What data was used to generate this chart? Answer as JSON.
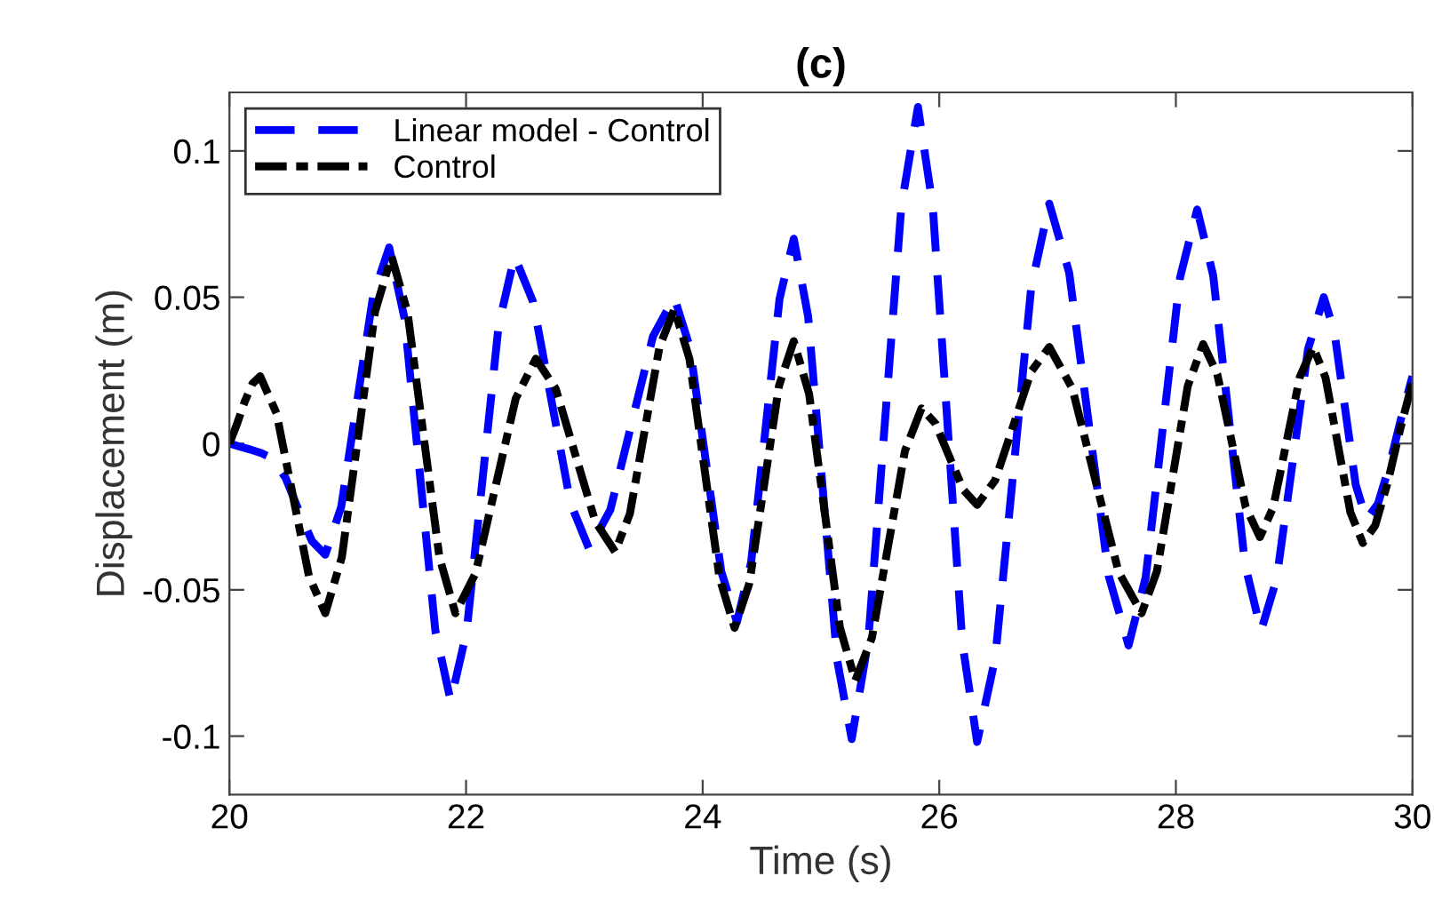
{
  "chart_data": {
    "type": "line",
    "title": "(c)",
    "xlabel": "Time (s)",
    "ylabel": "Displacement (m)",
    "xlim": [
      20,
      30
    ],
    "ylim": [
      -0.12,
      0.12
    ],
    "xticks": [
      20,
      22,
      24,
      26,
      28,
      30
    ],
    "yticks": [
      {
        "value": -0.1,
        "label": "-0.1"
      },
      {
        "value": -0.05,
        "label": "-0.05"
      },
      0,
      0.05,
      0.1
    ],
    "grid": false,
    "legend": "top left",
    "marker": "none",
    "series": [
      {
        "name": "Linear model - Control",
        "color": "#0000ff",
        "line_style": "dashed",
        "x": [
          20.0,
          20.09,
          20.18,
          20.27,
          20.36,
          20.473,
          20.585,
          20.697,
          20.81,
          20.945,
          21.08,
          21.215,
          21.35,
          21.48,
          21.61,
          21.74,
          21.87,
          22.005,
          22.14,
          22.275,
          22.41,
          22.567,
          22.725,
          22.883,
          23.04,
          23.22,
          23.4,
          23.58,
          23.76,
          23.893,
          24.025,
          24.157,
          24.29,
          24.41,
          24.53,
          24.65,
          24.77,
          24.892,
          25.015,
          25.138,
          25.26,
          25.4,
          25.54,
          25.68,
          25.82,
          25.945,
          26.07,
          26.195,
          26.32,
          26.473,
          26.625,
          26.777,
          26.93,
          27.098,
          27.265,
          27.433,
          27.6,
          27.745,
          27.89,
          28.035,
          28.18,
          28.315,
          28.45,
          28.585,
          28.72,
          28.852,
          28.985,
          29.117,
          29.25,
          29.34,
          29.43,
          29.52,
          29.61,
          29.708,
          29.805,
          29.903,
          30.0
        ],
        "values": [
          0.0,
          -0.0011,
          -0.0021,
          -0.0033,
          -0.005,
          -0.0116,
          -0.0228,
          -0.0333,
          -0.038,
          -0.0216,
          0.0145,
          0.0506,
          0.067,
          0.0428,
          -0.0105,
          -0.0638,
          -0.088,
          -0.0643,
          -0.012,
          0.0403,
          0.064,
          0.0484,
          0.014,
          -0.0204,
          -0.036,
          -0.0226,
          0.007,
          0.0366,
          0.05,
          0.0327,
          -0.0055,
          -0.0437,
          -0.061,
          -0.0405,
          0.0045,
          0.0495,
          0.07,
          0.0433,
          -0.0155,
          -0.0743,
          -0.101,
          -0.0673,
          0.007,
          0.0813,
          0.115,
          0.0811,
          0.0065,
          -0.0681,
          -0.102,
          -0.0733,
          -0.01,
          0.0533,
          0.082,
          0.0584,
          0.0065,
          -0.0454,
          -0.069,
          -0.0457,
          0.0055,
          0.0567,
          0.08,
          0.0575,
          0.008,
          -0.0415,
          -0.064,
          -0.0462,
          -0.007,
          0.0322,
          0.05,
          0.0381,
          0.012,
          -0.0141,
          -0.026,
          -0.0206,
          -0.0076,
          0.0085,
          0.023
        ]
      },
      {
        "name": "Control",
        "color": "#000000",
        "line_style": "dashdot",
        "x": [
          20.0,
          20.065,
          20.13,
          20.195,
          20.26,
          20.398,
          20.535,
          20.672,
          20.81,
          20.95,
          21.09,
          21.23,
          21.37,
          21.505,
          21.64,
          21.775,
          21.91,
          22.08,
          22.25,
          22.42,
          22.59,
          22.758,
          22.925,
          23.093,
          23.26,
          23.385,
          23.51,
          23.635,
          23.76,
          23.888,
          24.015,
          24.143,
          24.27,
          24.395,
          24.52,
          24.645,
          24.77,
          24.9,
          25.03,
          25.16,
          25.29,
          25.43,
          25.57,
          25.71,
          25.85,
          25.968,
          26.085,
          26.203,
          26.32,
          26.472,
          26.625,
          26.777,
          26.93,
          27.125,
          27.32,
          27.515,
          27.71,
          27.84,
          27.97,
          28.1,
          28.23,
          28.35,
          28.47,
          28.59,
          28.71,
          28.823,
          28.935,
          29.048,
          29.16,
          29.265,
          29.37,
          29.475,
          29.58,
          29.685,
          29.79,
          29.895,
          30.0
        ],
        "values": [
          0.0,
          0.0068,
          0.0144,
          0.0205,
          0.023,
          0.0103,
          -0.0175,
          -0.0453,
          -0.058,
          -0.0389,
          0.003,
          0.0449,
          0.064,
          0.0449,
          0.003,
          -0.0389,
          -0.058,
          -0.0444,
          -0.0145,
          0.0154,
          0.029,
          0.0187,
          -0.004,
          -0.0267,
          -0.037,
          -0.024,
          0.0045,
          0.033,
          0.046,
          0.029,
          -0.0085,
          -0.046,
          -0.063,
          -0.0477,
          -0.014,
          0.0197,
          0.035,
          0.0169,
          -0.023,
          -0.0629,
          -0.081,
          -0.0665,
          -0.0345,
          -0.0025,
          0.012,
          0.0068,
          -0.0045,
          -0.0158,
          -0.021,
          -0.0126,
          0.006,
          0.0246,
          0.033,
          0.0188,
          -0.0125,
          -0.0438,
          -0.058,
          -0.0436,
          -0.012,
          0.0196,
          0.034,
          0.0237,
          0.001,
          -0.0217,
          -0.032,
          -0.0218,
          0.0005,
          0.0228,
          0.033,
          0.0225,
          -0.0005,
          -0.0235,
          -0.034,
          -0.028,
          -0.0134,
          0.0047,
          0.021
        ]
      }
    ]
  }
}
